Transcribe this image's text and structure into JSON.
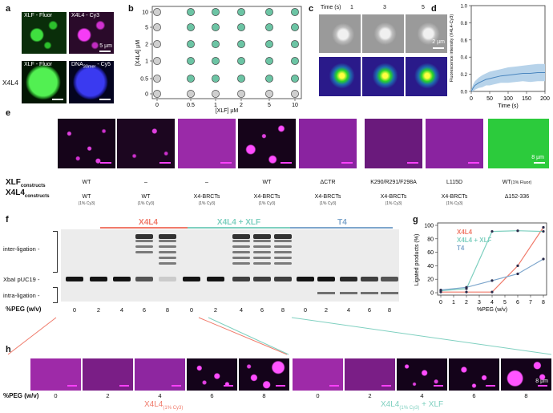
{
  "panels": {
    "a": "a",
    "b": "b",
    "c": "c",
    "d": "d",
    "e": "e",
    "f": "f",
    "g": "g",
    "h": "h"
  },
  "panel_a": {
    "tl": "XLF - Fluor",
    "tr": "X4L4 - Cy3",
    "bl": "XLF - Fluor",
    "br_main": "DNA",
    "br_sub": "30mer",
    "br_tail": " - Cy5",
    "side": "X4L4",
    "scale": "5 µm"
  },
  "panel_b": {
    "ylabel": "[X4L4] µM",
    "xlabel": "[XLF] µM",
    "xticks": [
      "0",
      "0.5",
      "1",
      "2",
      "5",
      "10"
    ],
    "yticks": [
      "0",
      "0.5",
      "1",
      "2",
      "5",
      "10"
    ],
    "colors": {
      "filled": "#6cc4a4",
      "empty": "#cfcfcf"
    }
  },
  "panel_c": {
    "title": "Time (s)",
    "times": [
      "1",
      "3",
      "5"
    ],
    "scale": "2 µm"
  },
  "panel_d": {
    "ylabel": "Fluorescence intensity (X4L4-Cy3)",
    "xlabel": "Time (s)",
    "xticks": [
      "0",
      "50",
      "100",
      "150",
      "200"
    ],
    "yticks": [
      "0.0",
      "0.2",
      "0.4",
      "0.6",
      "0.8",
      "1.0"
    ]
  },
  "panel_e": {
    "xlf_label": "XLF",
    "xlf_sub": "constructs",
    "x4l4_label": "X4L4",
    "x4l4_sub": "constructs",
    "scale": "8 µm",
    "columns": [
      {
        "xlf": "WT",
        "x4l4": "WT",
        "note": "(1% Cy3)"
      },
      {
        "xlf": "–",
        "x4l4": "WT",
        "note": "(1% Cy3)"
      },
      {
        "xlf": "–",
        "x4l4": "X4-BRCTs",
        "note": "(1% Cy3)"
      },
      {
        "xlf": "WT",
        "x4l4": "X4-BRCTs",
        "note": "(1% Cy3)"
      },
      {
        "xlf": "ΔCTR",
        "x4l4": "X4-BRCTs",
        "note": "(1% Cy3)"
      },
      {
        "xlf": "K290/R291/F298A",
        "x4l4": "X4-BRCTs",
        "note": "(1% Cy3)"
      },
      {
        "xlf": "L115D",
        "x4l4": "X4-BRCTs",
        "note": "(1% Cy3)"
      },
      {
        "xlf": "WT",
        "xlf_note": "(1% Fluor)",
        "x4l4": "Δ152-336",
        "note": ""
      }
    ]
  },
  "panel_f": {
    "groups": [
      {
        "name": "X4L4",
        "color": "#f07a6a"
      },
      {
        "name": "X4L4 + XLF",
        "color": "#7fd0c0"
      },
      {
        "name": "T4",
        "color": "#7ea6cc"
      }
    ],
    "bands": [
      "inter-ligation -",
      "XbaI pUC19 -",
      "intra-ligation -"
    ],
    "peg_label": "%PEG (w/v)",
    "lanes": [
      "0",
      "2",
      "4",
      "6",
      "8",
      "0",
      "2",
      "4",
      "6",
      "8",
      "0",
      "2",
      "4",
      "6",
      "8"
    ]
  },
  "panel_g": {
    "ylabel": "Ligated products (%)",
    "xlabel": "%PEG (w/v)",
    "legend": [
      "X4L4",
      "X4L4 + XLF",
      "T4"
    ]
  },
  "panel_h": {
    "peg_label": "%PEG (w/v)",
    "values": [
      "0",
      "2",
      "4",
      "6",
      "8",
      "0",
      "2",
      "4",
      "6",
      "8"
    ],
    "group1_main": "X4L4",
    "group1_sub": "(1% Cy3)",
    "group2_main": "X4L4",
    "group2_sub": "(1% Cy3)",
    "group2_tail": " + XLF",
    "scale": "8 µm"
  },
  "chart_data": [
    {
      "type": "scatter",
      "id": "panel_b",
      "xlabel": "[XLF] µM",
      "ylabel": "[X4L4] µM",
      "categories_x": [
        "0",
        "0.5",
        "1",
        "2",
        "5",
        "10"
      ],
      "categories_y": [
        "0",
        "0.5",
        "1",
        "2",
        "5",
        "10"
      ],
      "phase_separated": [
        [
          0,
          0,
          0,
          0,
          0,
          0
        ],
        [
          0,
          1,
          1,
          1,
          1,
          1
        ],
        [
          0,
          1,
          1,
          1,
          1,
          1
        ],
        [
          0,
          1,
          1,
          1,
          1,
          1
        ],
        [
          0,
          1,
          1,
          1,
          1,
          1
        ],
        [
          0,
          1,
          1,
          1,
          1,
          1
        ]
      ]
    },
    {
      "type": "line",
      "id": "panel_d",
      "xlabel": "Time (s)",
      "ylabel": "Fluorescence intensity (X4L4-Cy3)",
      "xlim": [
        0,
        200
      ],
      "ylim": [
        0,
        1.0
      ],
      "x": [
        0,
        5,
        10,
        20,
        30,
        40,
        50,
        60,
        80,
        100,
        120,
        140,
        160,
        180,
        200
      ],
      "y": [
        0.0,
        0.04,
        0.07,
        0.1,
        0.12,
        0.14,
        0.15,
        0.16,
        0.18,
        0.19,
        0.2,
        0.21,
        0.21,
        0.22,
        0.22
      ],
      "band": [
        0.02,
        0.04,
        0.05,
        0.06,
        0.07,
        0.07,
        0.08,
        0.08,
        0.08,
        0.09,
        0.09,
        0.09,
        0.1,
        0.1,
        0.1
      ]
    },
    {
      "type": "line",
      "id": "panel_g",
      "xlabel": "%PEG (w/v)",
      "ylabel": "Ligated products (%)",
      "x": [
        0,
        2,
        4,
        6,
        8
      ],
      "xlim": [
        0,
        8
      ],
      "ylim": [
        0,
        100
      ],
      "yticks": [
        0,
        20,
        40,
        60,
        80,
        100
      ],
      "series": [
        {
          "name": "X4L4",
          "color": "#f07a6a",
          "values": [
            1,
            1,
            1,
            40,
            97
          ]
        },
        {
          "name": "X4L4 + XLF",
          "color": "#7fd0c0",
          "values": [
            3,
            6,
            91,
            92,
            91
          ]
        },
        {
          "name": "T4",
          "color": "#7ea6cc",
          "values": [
            4,
            8,
            18,
            28,
            50
          ]
        }
      ]
    }
  ]
}
